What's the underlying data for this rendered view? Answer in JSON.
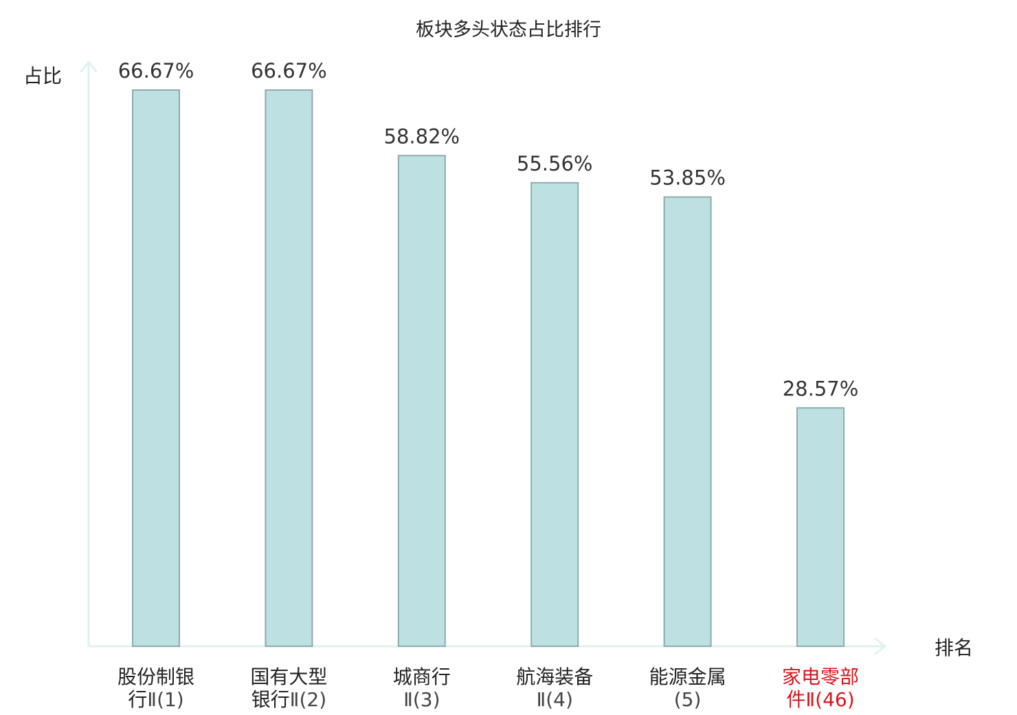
{
  "chart_data": {
    "type": "bar",
    "title": "板块多头状态占比排行",
    "ylabel": "占比",
    "xlabel": "排名",
    "ylim": [
      0,
      70
    ],
    "grid": false,
    "categories": [
      {
        "name": "股份制银行",
        "rank": "Ⅱ(1)",
        "highlight": false
      },
      {
        "name": "国有大型银行",
        "rank": "Ⅱ(2)",
        "highlight": false
      },
      {
        "name": "城商行",
        "rank": "Ⅱ(3)",
        "highlight": false
      },
      {
        "name": "航海装备",
        "rank": "Ⅱ(4)",
        "highlight": false
      },
      {
        "name": "能源金属",
        "rank": "(5)",
        "highlight": false
      },
      {
        "name": "家电零部件",
        "rank": "Ⅱ(46)",
        "highlight": true
      }
    ],
    "values": [
      66.67,
      66.67,
      58.82,
      55.56,
      53.85,
      28.57
    ],
    "value_labels": [
      "66.67%",
      "66.67%",
      "58.82%",
      "55.56%",
      "53.85%",
      "28.57%"
    ],
    "colors": {
      "bar_fill": "#bde1e3",
      "bar_stroke": "#8eaaad",
      "axis": "#dff2ee",
      "highlight_text": "#d9141c",
      "normal_text": "#222222"
    }
  }
}
